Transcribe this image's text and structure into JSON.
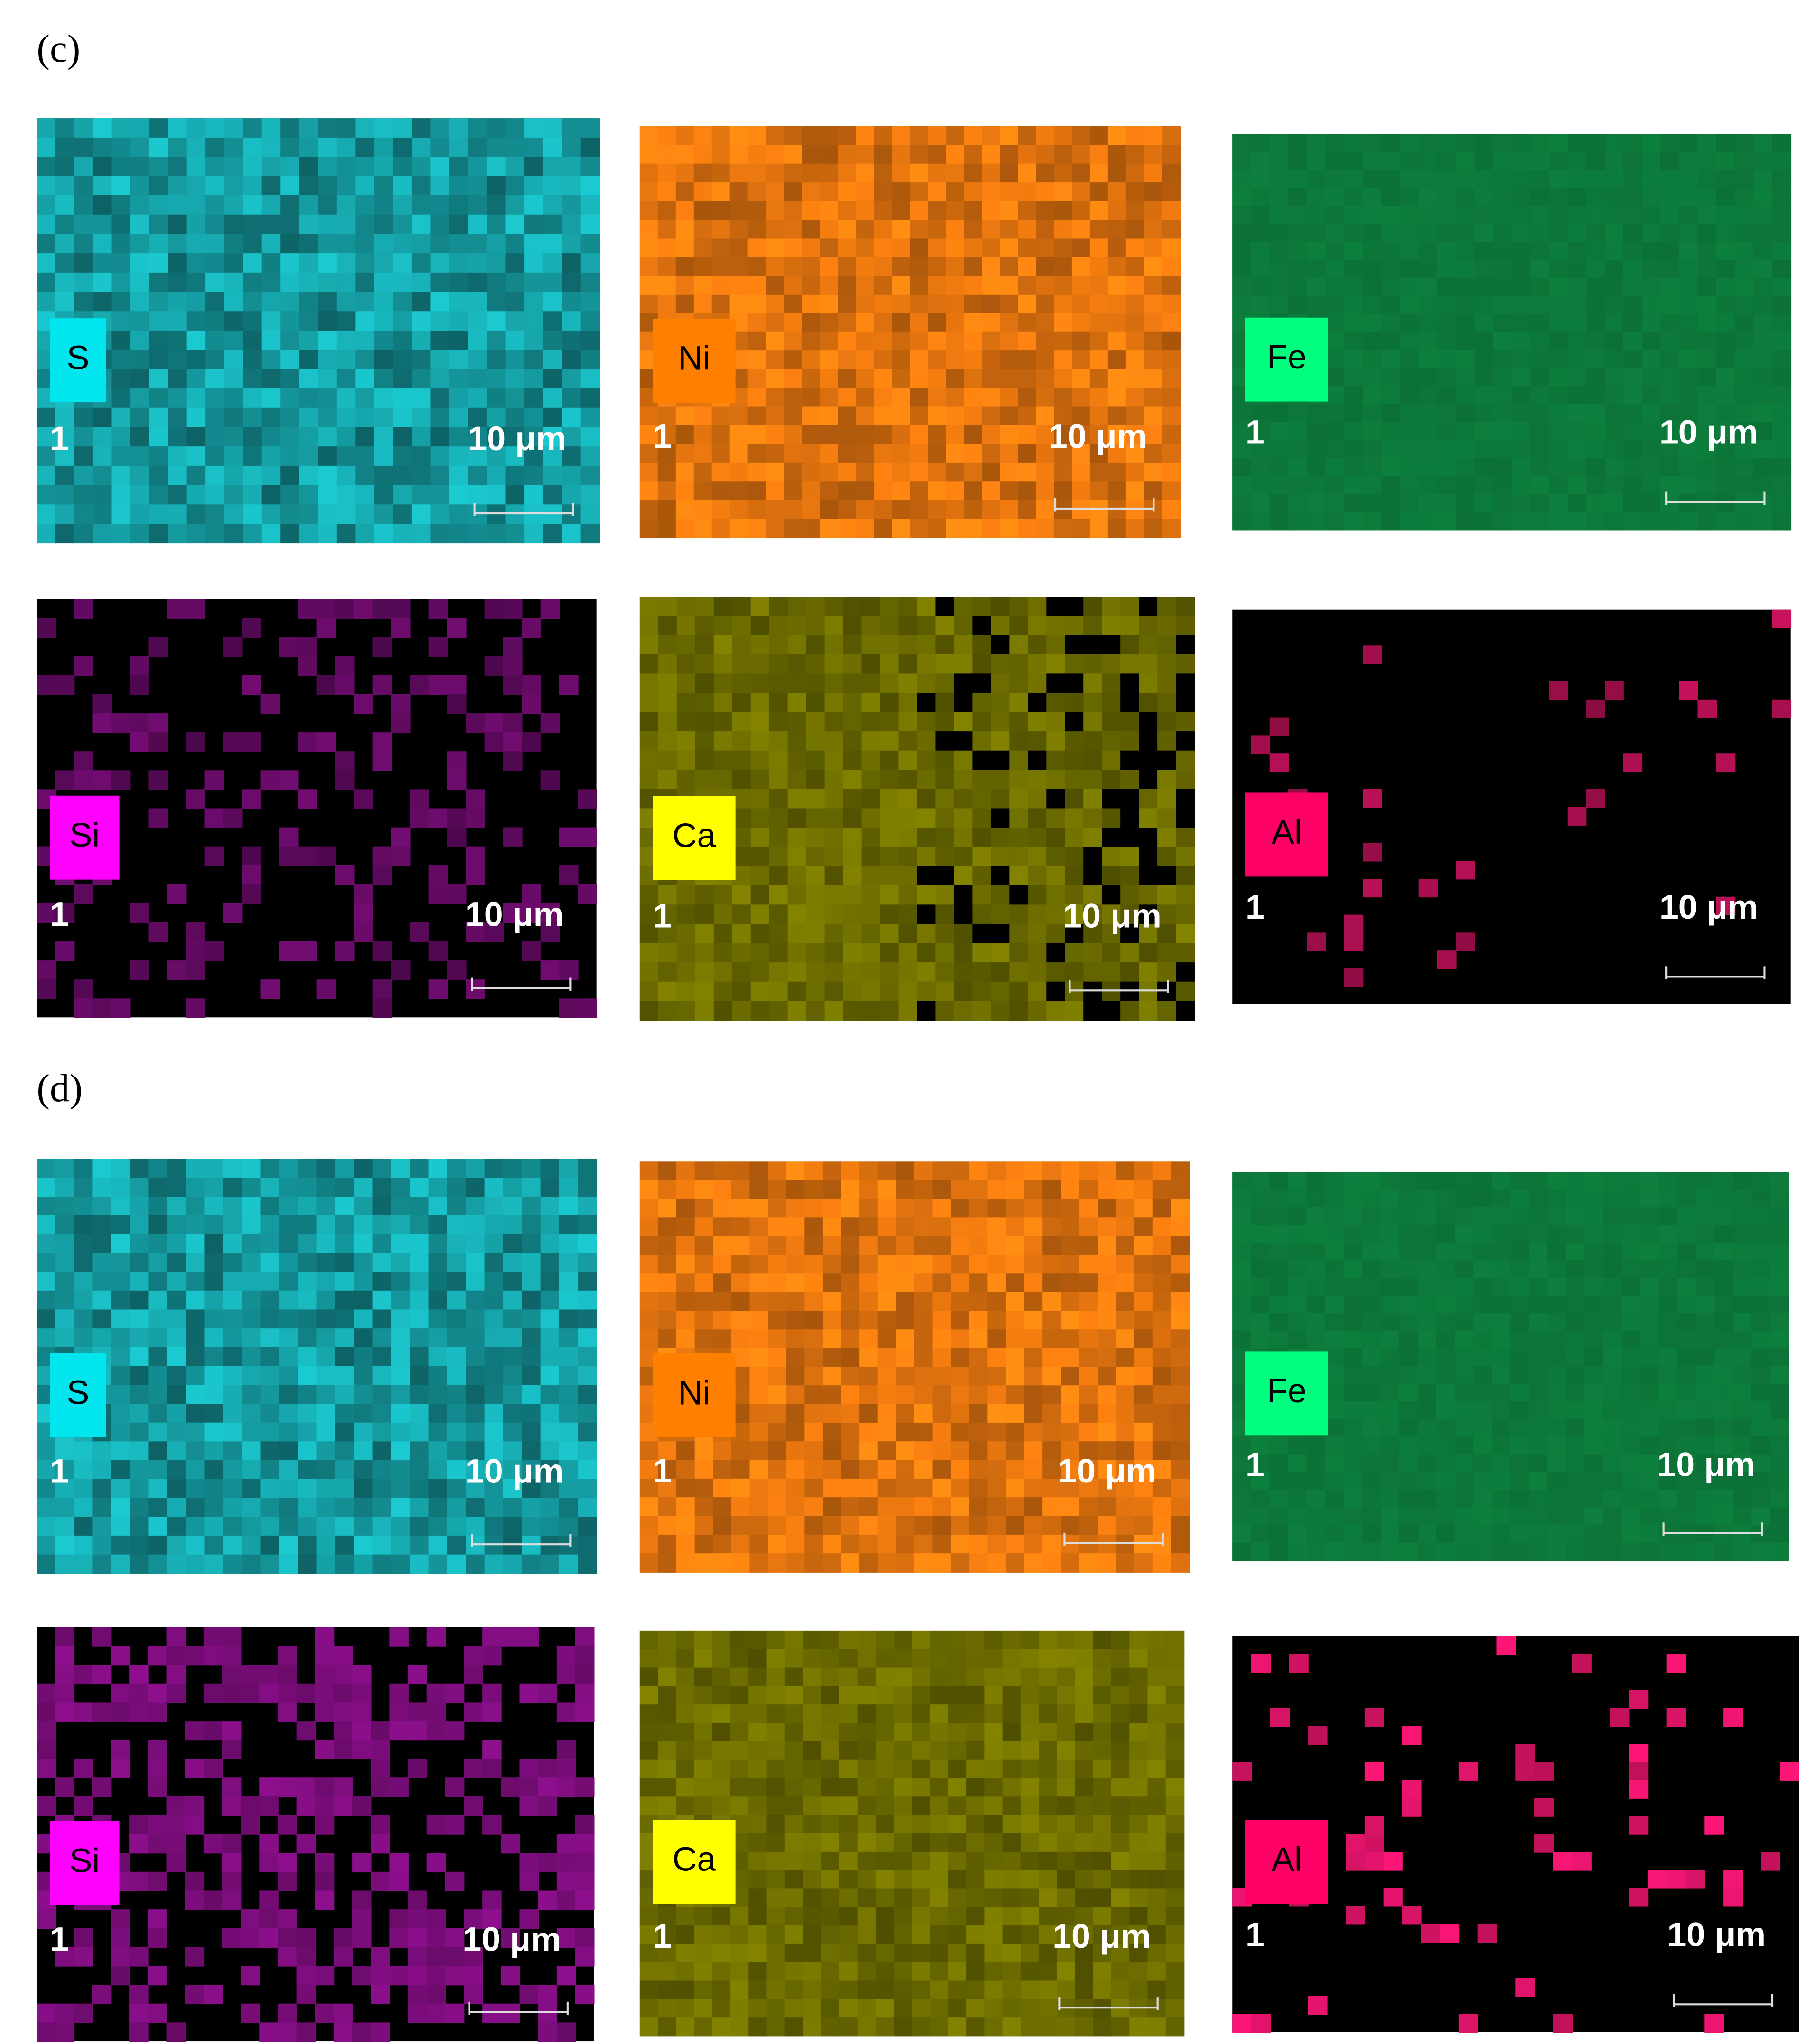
{
  "panels": [
    {
      "label": "(c)",
      "maps": [
        {
          "element": "S",
          "index": "1",
          "scale": "10 μm"
        },
        {
          "element": "Ni",
          "index": "1",
          "scale": "10 μm"
        },
        {
          "element": "Fe",
          "index": "1",
          "scale": "10 μm"
        },
        {
          "element": "Si",
          "index": "1",
          "scale": "10 μm"
        },
        {
          "element": "Ca",
          "index": "1",
          "scale": "10 μm"
        },
        {
          "element": "Al",
          "index": "1",
          "scale": "10 μm"
        }
      ]
    },
    {
      "label": "(d)",
      "maps": [
        {
          "element": "S",
          "index": "1",
          "scale": "10 μm"
        },
        {
          "element": "Ni",
          "index": "1",
          "scale": "10 μm"
        },
        {
          "element": "Fe",
          "index": "1",
          "scale": "10 μm"
        },
        {
          "element": "Si",
          "index": "1",
          "scale": "10 μm"
        },
        {
          "element": "Ca",
          "index": "1",
          "scale": "10 μm"
        },
        {
          "element": "Al",
          "index": "1",
          "scale": "10 μm"
        }
      ]
    }
  ]
}
